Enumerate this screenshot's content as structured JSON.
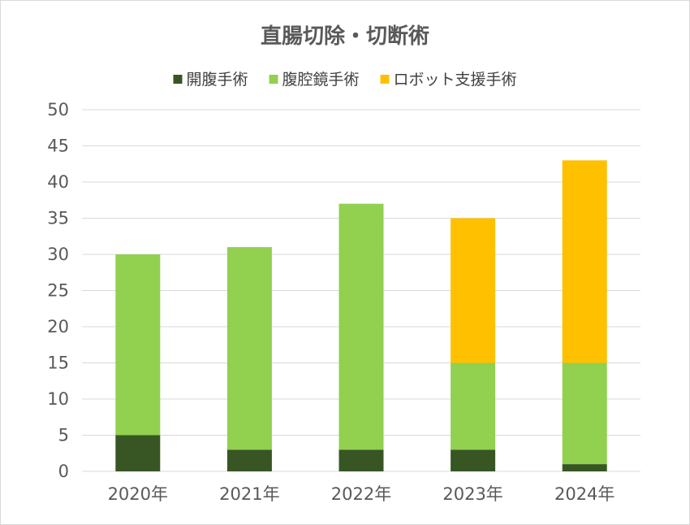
{
  "chart_data": {
    "type": "bar",
    "stacked": true,
    "title": "直腸切除・切断術",
    "categories": [
      "2020年",
      "2021年",
      "2022年",
      "2023年",
      "2024年"
    ],
    "series": [
      {
        "name": "開腹手術",
        "values": [
          5,
          3,
          3,
          3,
          1
        ],
        "color": "#375623"
      },
      {
        "name": "腹腔鏡手術",
        "values": [
          25,
          28,
          34,
          12,
          14
        ],
        "color": "#92d050"
      },
      {
        "name": "ロボット支援手術",
        "values": [
          0,
          0,
          0,
          20,
          28
        ],
        "color": "#ffc000"
      }
    ],
    "ylim": [
      0,
      50
    ],
    "yticks": [
      0,
      5,
      10,
      15,
      20,
      25,
      30,
      35,
      40,
      45,
      50
    ],
    "grid": true,
    "legend_position": "top"
  }
}
